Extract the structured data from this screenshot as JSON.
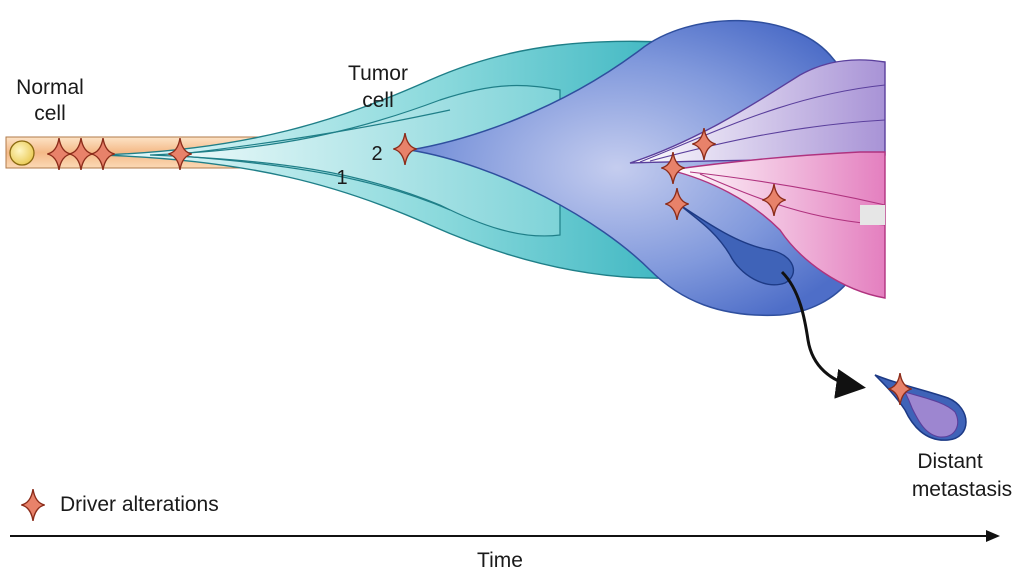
{
  "labels": {
    "normal_cell_line1": "Normal",
    "normal_cell_line2": "cell",
    "tumor_cell_line1": "Tumor",
    "tumor_cell_line2": "cell",
    "clone_1": "1",
    "clone_2": "2",
    "distant_line1": "Distant",
    "distant_line2": "metastasis",
    "time_axis": "Time"
  },
  "legend": {
    "driver_alterations": "Driver alterations"
  },
  "colors": {
    "normal_band": "#f6c79a",
    "normal_cell": "#f3dc6b",
    "star_fill": "#e8826a",
    "star_stroke": "#8c2d1b",
    "teal": "#5cc9cf",
    "blue": "#6c8fd6",
    "dark_blue": "#3f63b8",
    "purple": "#9d86d0",
    "pink": "#e48ac4",
    "arrow": "#111111"
  }
}
